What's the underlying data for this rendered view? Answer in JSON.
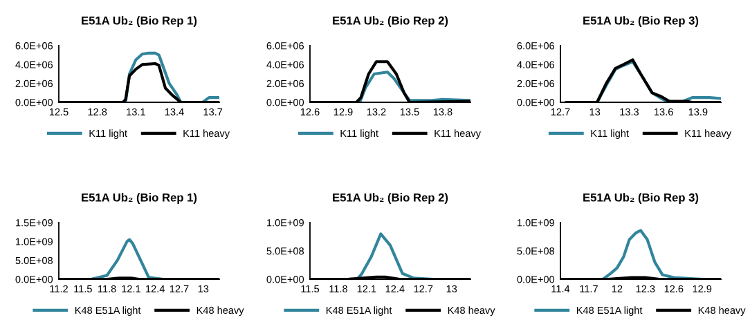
{
  "chart_data": [
    {
      "type": "line",
      "title": "E51A Ub₂ (Bio Rep 1)",
      "xlim": [
        12.5,
        13.75
      ],
      "xticks": [
        12.5,
        12.8,
        13.1,
        13.4,
        13.7
      ],
      "ylim": [
        0,
        6000000
      ],
      "yticks": [
        {
          "value": 0,
          "label": "0.0E+00"
        },
        {
          "value": 2000000,
          "label": "2.0E+06"
        },
        {
          "value": 4000000,
          "label": "4.0E+06"
        },
        {
          "value": 6000000,
          "label": "6.0E+06"
        }
      ],
      "grid": false,
      "legend": "bottom",
      "marker": "none",
      "line_style": "solid",
      "series": [
        {
          "name": "K11 light",
          "color": "#31859c",
          "x": [
            12.5,
            13.0,
            13.02,
            13.05,
            13.1,
            13.15,
            13.2,
            13.25,
            13.28,
            13.32,
            13.36,
            13.42,
            13.45,
            13.62,
            13.67,
            13.75
          ],
          "values": [
            0,
            0,
            0,
            3000000,
            4500000,
            5100000,
            5200000,
            5200000,
            5000000,
            3500000,
            2000000,
            800000,
            0,
            0,
            500000,
            500000
          ]
        },
        {
          "name": "K11 heavy",
          "color": "#000000",
          "x": [
            12.5,
            13.0,
            13.02,
            13.05,
            13.1,
            13.15,
            13.25,
            13.28,
            13.33,
            13.38,
            13.45,
            13.75
          ],
          "values": [
            0,
            0,
            300000,
            2800000,
            3500000,
            4000000,
            4100000,
            3900000,
            1500000,
            800000,
            0,
            0
          ]
        }
      ]
    },
    {
      "type": "line",
      "title": "E51A Ub₂ (Bio Rep 2)",
      "xlim": [
        12.6,
        14.05
      ],
      "xticks": [
        12.6,
        12.9,
        13.2,
        13.5,
        13.8
      ],
      "ylim": [
        0,
        6000000
      ],
      "yticks": [
        {
          "value": 0,
          "label": "0.0E+00"
        },
        {
          "value": 2000000,
          "label": "2.0E+06"
        },
        {
          "value": 4000000,
          "label": "4.0E+06"
        },
        {
          "value": 6000000,
          "label": "6.0E+06"
        }
      ],
      "grid": false,
      "legend": "bottom",
      "marker": "none",
      "line_style": "solid",
      "series": [
        {
          "name": "K11 light",
          "color": "#31859c",
          "x": [
            12.6,
            13.05,
            13.1,
            13.18,
            13.3,
            13.36,
            13.45,
            13.5,
            13.7,
            13.8,
            14.05
          ],
          "values": [
            0,
            0,
            1500000,
            3000000,
            3200000,
            2500000,
            1000000,
            200000,
            200000,
            300000,
            200000
          ]
        },
        {
          "name": "K11 heavy",
          "color": "#000000",
          "x": [
            12.6,
            13.02,
            13.06,
            13.13,
            13.2,
            13.3,
            13.38,
            13.45,
            13.5,
            14.05
          ],
          "values": [
            0,
            0,
            500000,
            3000000,
            4300000,
            4300000,
            3000000,
            1000000,
            0,
            100000
          ]
        }
      ]
    },
    {
      "type": "line",
      "title": "E51A Ub₂ (Bio Rep 3)",
      "xlim": [
        12.7,
        14.1
      ],
      "xticks": [
        12.7,
        13,
        13.3,
        13.6,
        13.9
      ],
      "ylim": [
        0,
        6000000
      ],
      "yticks": [
        {
          "value": 0,
          "label": "0.0E+00"
        },
        {
          "value": 2000000,
          "label": "2.0E+06"
        },
        {
          "value": 4000000,
          "label": "4.0E+06"
        },
        {
          "value": 6000000,
          "label": "6.0E+06"
        }
      ],
      "grid": false,
      "legend": "bottom",
      "marker": "none",
      "line_style": "solid",
      "series": [
        {
          "name": "K11 light",
          "color": "#31859c",
          "x": [
            12.75,
            13.0,
            13.02,
            13.1,
            13.18,
            13.25,
            13.33,
            13.4,
            13.5,
            13.58,
            13.65,
            13.75,
            13.85,
            14.0,
            14.1
          ],
          "values": [
            0,
            0,
            0,
            1800000,
            3500000,
            3900000,
            4300000,
            3000000,
            1000000,
            400000,
            0,
            0,
            500000,
            500000,
            400000
          ]
        },
        {
          "name": "K11 heavy",
          "color": "#000000",
          "x": [
            12.75,
            13.0,
            13.02,
            13.1,
            13.18,
            13.25,
            13.33,
            13.4,
            13.5,
            13.58,
            13.65,
            13.8,
            13.85,
            14.1
          ],
          "values": [
            0,
            0,
            0,
            2000000,
            3600000,
            4000000,
            4500000,
            3000000,
            1000000,
            600000,
            100000,
            100000,
            0,
            0
          ]
        }
      ]
    },
    {
      "type": "line",
      "title": "E51A Ub₂ (Bio Rep 1)",
      "xlim": [
        11.2,
        13.2
      ],
      "xticks": [
        11.2,
        11.5,
        11.8,
        12.1,
        12.4,
        12.7,
        13
      ],
      "ylim": [
        0,
        1500000000
      ],
      "yticks": [
        {
          "value": 0,
          "label": "0.0E+00"
        },
        {
          "value": 500000000,
          "label": "5.0E+08"
        },
        {
          "value": 1000000000,
          "label": "1.0E+09"
        },
        {
          "value": 1500000000,
          "label": "1.5E+09"
        }
      ],
      "grid": false,
      "legend": "bottom",
      "marker": "none",
      "line_style": "solid",
      "series": [
        {
          "name": "K48 E51A light",
          "color": "#31859c",
          "x": [
            11.2,
            11.6,
            11.8,
            11.93,
            12.05,
            12.08,
            12.12,
            12.22,
            12.32,
            12.5,
            13.2
          ],
          "values": [
            0,
            0,
            100000000,
            500000000,
            1000000000,
            1050000000,
            950000000,
            500000000,
            50000000,
            0,
            0
          ]
        },
        {
          "name": "K48 heavy",
          "color": "#000000",
          "x": [
            11.2,
            11.8,
            11.95,
            12.1,
            12.2,
            13.2
          ],
          "values": [
            0,
            0,
            30000000,
            30000000,
            0,
            0
          ]
        }
      ]
    },
    {
      "type": "line",
      "title": "E51A Ub₂ (Bio Rep 2)",
      "xlim": [
        11.5,
        13.2
      ],
      "xticks": [
        11.5,
        11.8,
        12.1,
        12.4,
        12.7,
        13
      ],
      "ylim": [
        0,
        1000000000
      ],
      "yticks": [
        {
          "value": 0,
          "label": "0.0E+00"
        },
        {
          "value": 500000000,
          "label": "5.0E+08"
        },
        {
          "value": 1000000000,
          "label": "1.0E+09"
        }
      ],
      "grid": false,
      "legend": "bottom",
      "marker": "none",
      "line_style": "solid",
      "series": [
        {
          "name": "K48 E51A light",
          "color": "#31859c",
          "x": [
            11.5,
            12.0,
            12.05,
            12.15,
            12.25,
            12.35,
            12.48,
            12.6,
            12.8,
            13.2
          ],
          "values": [
            0,
            0,
            100000000,
            400000000,
            800000000,
            600000000,
            100000000,
            20000000,
            0,
            0
          ]
        },
        {
          "name": "K48 heavy",
          "color": "#000000",
          "x": [
            11.5,
            11.9,
            12.2,
            12.3,
            12.45,
            13.2
          ],
          "values": [
            0,
            0,
            40000000,
            40000000,
            0,
            0
          ]
        }
      ]
    },
    {
      "type": "line",
      "title": "E51A Ub₂ (Bio Rep 3)",
      "xlim": [
        11.4,
        13.1
      ],
      "xticks": [
        11.4,
        11.7,
        12,
        12.3,
        12.6,
        12.9
      ],
      "ylim": [
        0,
        1000000000
      ],
      "yticks": [
        {
          "value": 0,
          "label": "0.0E+00"
        },
        {
          "value": 500000000,
          "label": "5.0E+08"
        },
        {
          "value": 1000000000,
          "label": "1.0E+09"
        }
      ],
      "grid": false,
      "legend": "bottom",
      "marker": "none",
      "line_style": "solid",
      "series": [
        {
          "name": "K48 E51A light",
          "color": "#31859c",
          "x": [
            11.4,
            11.85,
            11.93,
            12.0,
            12.07,
            12.13,
            12.2,
            12.25,
            12.32,
            12.4,
            12.48,
            12.6,
            12.9,
            13.1
          ],
          "values": [
            0,
            0,
            100000000,
            200000000,
            400000000,
            700000000,
            820000000,
            860000000,
            700000000,
            300000000,
            80000000,
            30000000,
            0,
            0
          ]
        },
        {
          "name": "K48 heavy",
          "color": "#000000",
          "x": [
            11.4,
            11.9,
            12.15,
            12.3,
            12.45,
            13.1
          ],
          "values": [
            0,
            0,
            30000000,
            30000000,
            0,
            0
          ]
        }
      ]
    }
  ]
}
